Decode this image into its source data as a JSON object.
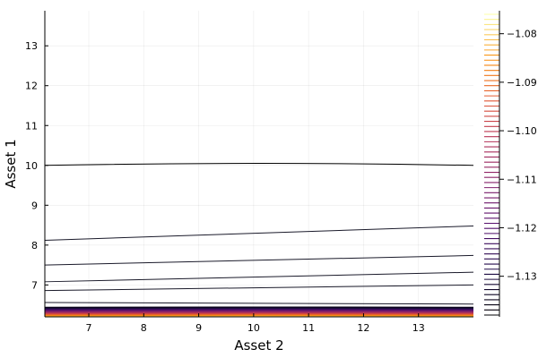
{
  "chart_data": {
    "type": "contour",
    "xlabel": "Asset 2",
    "ylabel": "Asset 1",
    "xlim": [
      6.2,
      14.0
    ],
    "ylim": [
      6.2,
      13.88
    ],
    "x_ticks": [
      7,
      8,
      9,
      10,
      11,
      12,
      13
    ],
    "y_ticks": [
      7,
      8,
      9,
      10,
      11,
      12,
      13
    ],
    "grid": true,
    "colorbar": {
      "range": [
        -1.138,
        -1.076
      ],
      "ticks": [
        -1.08,
        -1.09,
        -1.1,
        -1.11,
        -1.12,
        -1.13
      ],
      "tick_labels": [
        "−1.08",
        "−1.09",
        "−1.10",
        "−1.11",
        "−1.12",
        "−1.13"
      ],
      "levels": 60,
      "colormap": "inferno"
    },
    "contour_lines": [
      {
        "y_start": 10.0,
        "y_mid": 10.05,
        "y_end": 10.0
      },
      {
        "y_start": 8.12,
        "y_mid": 8.3,
        "y_end": 8.48
      },
      {
        "y_start": 7.5,
        "y_mid": 7.62,
        "y_end": 7.74
      },
      {
        "y_start": 7.08,
        "y_mid": 7.2,
        "y_end": 7.32
      },
      {
        "y_start": 6.86,
        "y_mid": 6.93,
        "y_end": 7.0
      },
      {
        "y_start": 6.56,
        "y_mid": 6.53,
        "y_end": 6.52
      }
    ],
    "dense_band": {
      "y_from": 6.2,
      "y_to": 6.44
    }
  }
}
